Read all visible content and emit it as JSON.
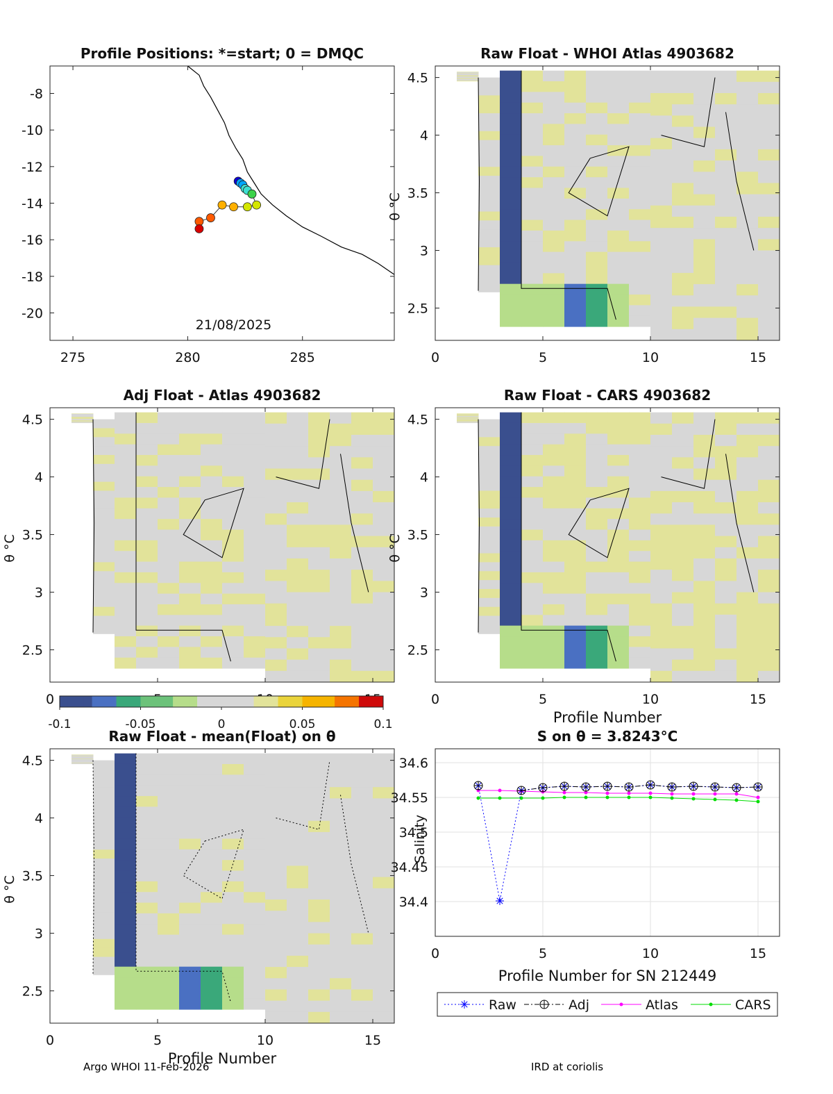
{
  "colors": {
    "map_colormap": [
      "#0b00d8",
      "#00a6ff",
      "#3fe0d0",
      "#3cd24a",
      "#d4e600",
      "#ffb000",
      "#ff5a00",
      "#d80000"
    ],
    "diff_colormap": [
      "#3a4f8e",
      "#4a70c2",
      "#3aa87a",
      "#6cc27a",
      "#b6dd8a",
      "#d7d7d7",
      "#e2e39a",
      "#ead43b",
      "#f6b400",
      "#f57400",
      "#cf0a0a"
    ],
    "raw": "#0000ff",
    "adj": "#000000",
    "atlas": "#ff00ff",
    "cars": "#00dd00"
  },
  "chart_data": [
    {
      "id": "positions",
      "type": "scatter",
      "title": "Profile Positions: *=start; 0 = DMQC",
      "annotation": "21/08/2025",
      "xlim": [
        274,
        289
      ],
      "ylim": [
        -21.5,
        -6.5
      ],
      "xticks": [
        275,
        280,
        285
      ],
      "yticks": [
        -8,
        -10,
        -12,
        -14,
        -16,
        -18,
        -20
      ],
      "coastline": [
        [
          280.0,
          -6.5
        ],
        [
          280.5,
          -7.0
        ],
        [
          280.7,
          -7.6
        ],
        [
          281.0,
          -8.2
        ],
        [
          281.3,
          -8.9
        ],
        [
          281.6,
          -9.6
        ],
        [
          281.8,
          -10.3
        ],
        [
          282.1,
          -11.0
        ],
        [
          282.4,
          -11.6
        ],
        [
          282.6,
          -12.3
        ],
        [
          282.9,
          -12.9
        ],
        [
          283.2,
          -13.5
        ],
        [
          283.7,
          -14.1
        ],
        [
          284.3,
          -14.7
        ],
        [
          285.0,
          -15.3
        ],
        [
          285.8,
          -15.8
        ],
        [
          286.7,
          -16.4
        ],
        [
          287.6,
          -16.8
        ],
        [
          288.3,
          -17.3
        ],
        [
          289.0,
          -17.9
        ]
      ],
      "track": [
        {
          "x": 282.2,
          "y": -12.8
        },
        {
          "x": 282.3,
          "y": -12.9
        },
        {
          "x": 282.4,
          "y": -13.0
        },
        {
          "x": 282.5,
          "y": -13.2
        },
        {
          "x": 282.6,
          "y": -13.3
        },
        {
          "x": 282.8,
          "y": -13.5
        },
        {
          "x": 283.0,
          "y": -14.1
        },
        {
          "x": 282.6,
          "y": -14.2
        },
        {
          "x": 282.0,
          "y": -14.2
        },
        {
          "x": 281.5,
          "y": -14.1
        },
        {
          "x": 281.0,
          "y": -14.8
        },
        {
          "x": 280.5,
          "y": -15.0
        },
        {
          "x": 280.5,
          "y": -15.4
        }
      ]
    },
    {
      "id": "raw_whoi",
      "type": "heatmap",
      "title": "Raw Float - WHOI Atlas  4903682",
      "ylabel": "θ °C",
      "xlim": [
        0,
        16
      ],
      "ylim": [
        2.22,
        4.6
      ],
      "xticks": [
        0,
        5,
        10,
        15
      ],
      "yticks": [
        2.5,
        3,
        3.5,
        4,
        4.5
      ]
    },
    {
      "id": "adj_atlas",
      "type": "heatmap",
      "title": "Adj Float - Atlas  4903682",
      "ylabel": "θ °C",
      "xlim": [
        0,
        16
      ],
      "ylim": [
        2.22,
        4.6
      ],
      "xticks": [
        0,
        5,
        10,
        15
      ],
      "yticks": [
        2.5,
        3,
        3.5,
        4,
        4.5
      ]
    },
    {
      "id": "raw_cars",
      "type": "heatmap",
      "title": "Raw Float - CARS  4903682",
      "xlabel": "Profile Number",
      "ylabel": "θ °C",
      "xlim": [
        0,
        16
      ],
      "ylim": [
        2.22,
        4.6
      ],
      "xticks": [
        0,
        5,
        10,
        15
      ],
      "yticks": [
        2.5,
        3,
        3.5,
        4,
        4.5
      ]
    },
    {
      "id": "raw_mean",
      "type": "heatmap",
      "title": "Raw Float - mean(Float) on θ",
      "xlabel": "Profile Number",
      "ylabel": "θ °C",
      "xlim": [
        0,
        16
      ],
      "ylim": [
        2.22,
        4.6
      ],
      "xticks": [
        0,
        5,
        10,
        15
      ],
      "yticks": [
        2.5,
        3,
        3.5,
        4,
        4.5
      ]
    },
    {
      "id": "salinity",
      "type": "line",
      "title": "S on θ = 3.8243°C",
      "xlabel": "Profile Number for SN 212449",
      "ylabel": "Salinity",
      "xlim": [
        0,
        16
      ],
      "ylim": [
        34.35,
        34.62
      ],
      "xticks": [
        0,
        5,
        10,
        15
      ],
      "yticks": [
        34.4,
        34.45,
        34.5,
        34.55,
        34.6
      ],
      "x": [
        2,
        3,
        4,
        5,
        6,
        7,
        8,
        9,
        10,
        11,
        12,
        13,
        14,
        15
      ],
      "series": [
        {
          "name": "Raw",
          "values": [
            34.567,
            34.401,
            34.56,
            34.564,
            34.566,
            34.565,
            34.566,
            34.565,
            34.568,
            34.565,
            34.566,
            34.565,
            34.564,
            34.565
          ]
        },
        {
          "name": "Adj",
          "values": [
            34.567,
            null,
            34.56,
            34.564,
            34.566,
            34.565,
            34.566,
            34.565,
            34.568,
            34.565,
            34.566,
            34.565,
            34.564,
            34.565
          ]
        },
        {
          "name": "Atlas",
          "values": [
            34.56,
            34.56,
            34.559,
            34.558,
            34.557,
            34.557,
            34.556,
            34.556,
            34.556,
            34.555,
            34.555,
            34.555,
            34.555,
            34.55
          ]
        },
        {
          "name": "CARS",
          "values": [
            34.549,
            34.549,
            34.549,
            34.549,
            34.55,
            34.55,
            34.55,
            34.55,
            34.55,
            34.549,
            34.548,
            34.547,
            34.546,
            34.544
          ]
        }
      ]
    }
  ],
  "colorbar": {
    "min": -0.1,
    "max": 0.1,
    "tick_values": [
      -0.1,
      -0.05,
      0,
      0.05,
      0.1
    ],
    "tick_labels": [
      "-0.1",
      "-0.05",
      "0",
      "0.05",
      "0.1"
    ]
  },
  "footer": {
    "left": "Argo WHOI 11-Feb-2026",
    "right": "IRD at coriolis"
  }
}
